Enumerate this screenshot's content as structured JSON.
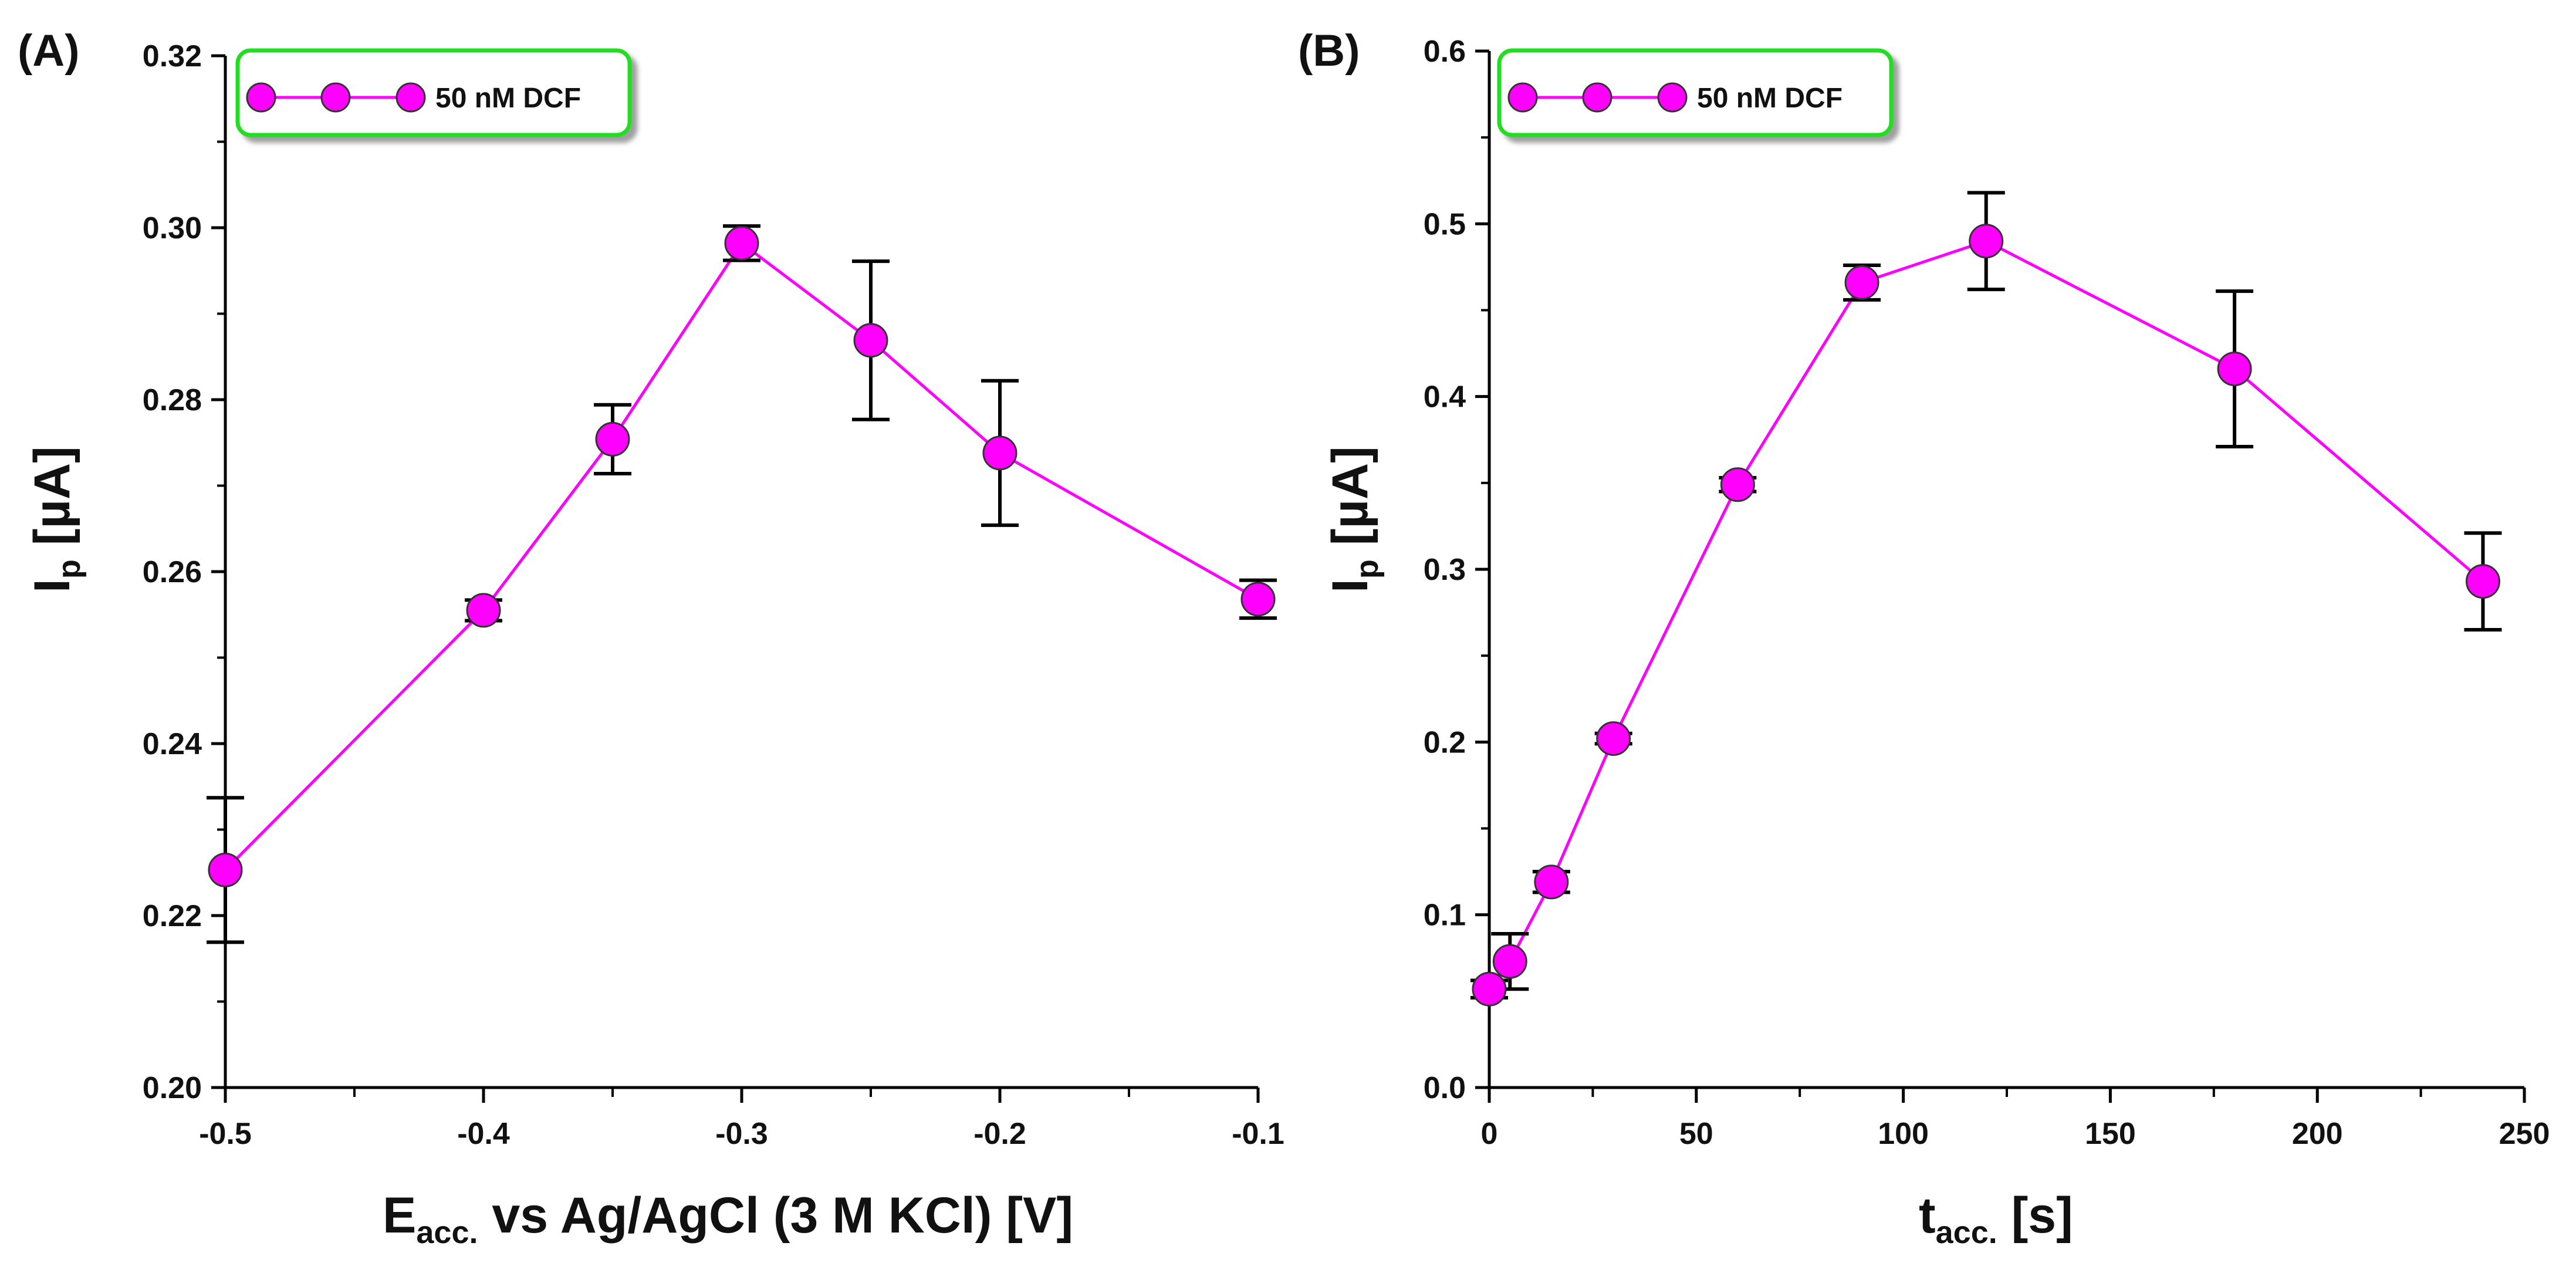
{
  "chart_data": [
    {
      "type": "line",
      "panel_label": "(A)",
      "xlabel": "E",
      "xlabel_sub": "acc.",
      "xlabel_rest": " vs Ag/AgCl (3 M KCl) [V]",
      "ylabel": "I",
      "ylabel_sub": "p",
      "ylabel_rest": " [µA]",
      "xlim": [
        -0.5,
        -0.1
      ],
      "ylim": [
        0.2,
        0.32
      ],
      "xticks": [
        -0.5,
        -0.4,
        -0.3,
        -0.2,
        -0.1
      ],
      "xtick_labels": [
        "-0.5",
        "-0.4",
        "-0.3",
        "-0.2",
        "-0.1"
      ],
      "x_minor_ticks": [
        -0.45,
        -0.35,
        -0.25,
        -0.15
      ],
      "yticks": [
        0.2,
        0.22,
        0.24,
        0.26,
        0.28,
        0.3,
        0.32
      ],
      "ytick_labels": [
        "0.20",
        "0.22",
        "0.24",
        "0.26",
        "0.28",
        "0.30",
        "0.32"
      ],
      "y_minor_ticks": [
        0.21,
        0.23,
        0.25,
        0.27,
        0.29,
        0.31
      ],
      "grid": false,
      "legend_position": "top-left",
      "series": [
        {
          "name": "50 nM DCF",
          "color": "#ff00ff",
          "x": [
            -0.5,
            -0.4,
            -0.35,
            -0.3,
            -0.25,
            -0.2,
            -0.1
          ],
          "y": [
            0.2253,
            0.2555,
            0.2754,
            0.2982,
            0.2869,
            0.2738,
            0.2568
          ],
          "error": [
            0.0084,
            0.0012,
            0.004,
            0.002,
            0.0092,
            0.0084,
            0.0022
          ]
        }
      ]
    },
    {
      "type": "line",
      "panel_label": "(B)",
      "xlabel": "t",
      "xlabel_sub": "acc.",
      "xlabel_rest": " [s]",
      "ylabel": "I",
      "ylabel_sub": "p",
      "ylabel_rest": " [µA]",
      "xlim": [
        0,
        250
      ],
      "ylim": [
        0,
        0.6
      ],
      "xticks": [
        0,
        50,
        100,
        150,
        200,
        250
      ],
      "xtick_labels": [
        "0",
        "50",
        "100",
        "150",
        "200",
        "250"
      ],
      "x_minor_ticks": [
        25,
        75,
        125,
        175,
        225
      ],
      "yticks": [
        0,
        0.1,
        0.2,
        0.3,
        0.4,
        0.5,
        0.6
      ],
      "ytick_labels": [
        "0.0",
        "0.1",
        "0.2",
        "0.3",
        "0.4",
        "0.5",
        "0.6"
      ],
      "y_minor_ticks": [
        0.05,
        0.15,
        0.25,
        0.35,
        0.45,
        0.55
      ],
      "grid": false,
      "legend_position": "top-left",
      "series": [
        {
          "name": "50 nM DCF",
          "color": "#ff00ff",
          "x": [
            0,
            5,
            15,
            30,
            60,
            90,
            120,
            180,
            240
          ],
          "y": [
            0.057,
            0.073,
            0.119,
            0.202,
            0.349,
            0.466,
            0.49,
            0.416,
            0.293
          ],
          "error": [
            0.005,
            0.016,
            0.006,
            0.003,
            0.004,
            0.01,
            0.028,
            0.045,
            0.028
          ]
        }
      ]
    }
  ],
  "colors": {
    "marker_fill": "#ff00ff",
    "legend_border": "#22dd22"
  }
}
